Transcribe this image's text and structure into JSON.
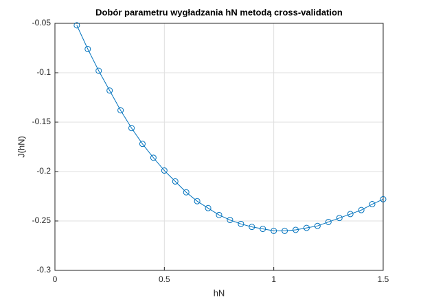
{
  "chart_data": {
    "type": "line",
    "title": "Dobór parametru wygładzania hN metodą cross-validation",
    "x_label": "hN",
    "y_label": "J(hN)",
    "x": [
      0.1,
      0.15,
      0.2,
      0.25,
      0.3,
      0.35,
      0.4,
      0.45,
      0.5,
      0.55,
      0.6,
      0.65,
      0.7,
      0.75,
      0.8,
      0.85,
      0.9,
      0.95,
      1.0,
      1.05,
      1.1,
      1.15,
      1.2,
      1.25,
      1.3,
      1.35,
      1.4,
      1.45,
      1.5
    ],
    "series": [
      {
        "name": "J(hN)",
        "color": "#0072bd",
        "values": [
          -0.052,
          -0.076,
          -0.098,
          -0.118,
          -0.138,
          -0.156,
          -0.172,
          -0.186,
          -0.199,
          -0.21,
          -0.221,
          -0.23,
          -0.237,
          -0.244,
          -0.249,
          -0.253,
          -0.256,
          -0.258,
          -0.26,
          -0.26,
          -0.259,
          -0.257,
          -0.255,
          -0.251,
          -0.247,
          -0.243,
          -0.239,
          -0.233,
          -0.228
        ]
      }
    ],
    "xlim": [
      0,
      1.5
    ],
    "xticks": [
      0,
      0.5,
      1,
      1.5
    ],
    "ylim": [
      -0.3,
      -0.05
    ],
    "yticks": [
      -0.3,
      -0.25,
      -0.2,
      -0.15,
      -0.1,
      -0.05
    ],
    "grid": true,
    "marker": "circle"
  }
}
